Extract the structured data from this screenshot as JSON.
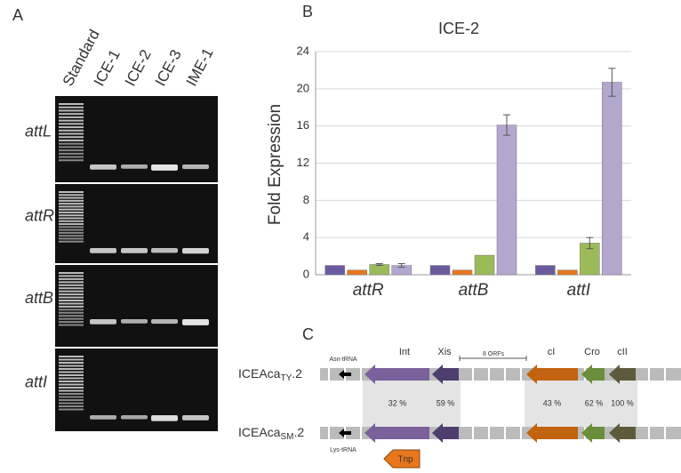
{
  "panels": {
    "a": {
      "label": "A",
      "lanes": [
        "Standard",
        "ICE-1",
        "ICE-2",
        "ICE-3",
        "IME-1"
      ],
      "rows": [
        "attL",
        "attR",
        "attB",
        "attI"
      ]
    },
    "b": {
      "label": "B"
    },
    "c": {
      "label": "C",
      "rows": [
        {
          "prefix": "ICEAca",
          "sub": "TY",
          "suffix": ".2"
        },
        {
          "prefix": "ICEAca",
          "sub": "SM",
          "suffix": ".2"
        }
      ],
      "genes": [
        "Int",
        "Xis",
        "8 ORFs",
        "cI",
        "Cro",
        "cII"
      ],
      "trnas": [
        "Asn-tRNA",
        "Lys-tRNA"
      ],
      "tnp": "Tnp",
      "identities": [
        "32 %",
        "59 %",
        "43 %",
        "62 %",
        "100 %"
      ]
    }
  },
  "chart_data": {
    "type": "bar",
    "title": "ICE-2",
    "y_label": "Fold Expression",
    "categories": [
      "attR",
      "attB",
      "attI"
    ],
    "series": [
      {
        "color": "#6b5a9e",
        "values": [
          1,
          1,
          1
        ],
        "errors": [
          null,
          null,
          null
        ]
      },
      {
        "color": "#e8761c",
        "values": [
          0.5,
          0.5,
          0.5
        ],
        "errors": [
          null,
          null,
          null
        ]
      },
      {
        "color": "#9bbb59",
        "values": [
          1.1,
          2.1,
          3.4
        ],
        "errors": [
          0.1,
          null,
          0.6
        ]
      },
      {
        "color": "#b3a6cf",
        "values": [
          1.0,
          16.1,
          20.7
        ],
        "errors": [
          0.2,
          1.1,
          1.5
        ]
      }
    ],
    "ylim": [
      0,
      24
    ],
    "yticks": [
      0,
      4,
      8,
      12,
      16,
      20,
      24
    ],
    "grid": true
  }
}
